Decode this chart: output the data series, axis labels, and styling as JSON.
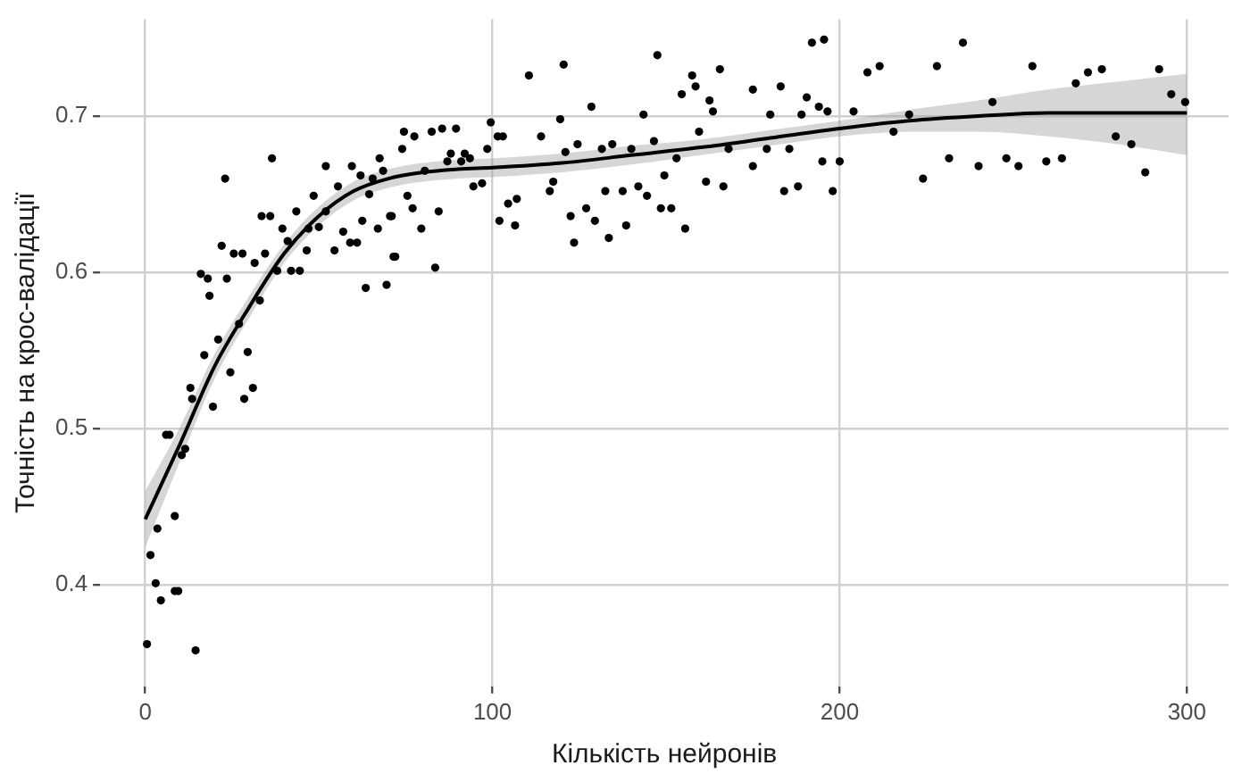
{
  "chart_data": {
    "type": "scatter",
    "xlabel": "Кількість нейронів",
    "ylabel": "Точність на крос-валідації",
    "xlim": [
      -13,
      312
    ],
    "ylim": [
      0.335,
      0.762
    ],
    "xticks": [
      0,
      100,
      200,
      300
    ],
    "yticks": [
      0.4,
      0.5,
      0.6,
      0.7
    ],
    "grid": true,
    "legend": false,
    "series": [
      {
        "marker": "circle",
        "color": "#000000",
        "x": [
          0.5,
          14.5,
          1.5,
          3.5,
          3,
          4.5,
          8.5,
          9.5,
          8.5,
          6,
          7,
          10.5,
          11.5,
          13,
          13.5,
          19.5,
          17,
          21,
          24.5,
          28.5,
          31,
          29.5,
          27,
          33,
          16,
          18,
          18.5,
          23.5,
          22,
          25.5,
          28,
          31.5,
          34.5,
          23,
          36.5,
          33.5,
          36,
          38,
          39.5,
          41,
          43.5,
          42,
          44.5,
          46.5,
          47,
          48.5,
          50,
          52,
          52,
          54.5,
          55.5,
          57,
          59,
          61,
          59.5,
          62,
          62.5,
          63.5,
          65.5,
          67.5,
          68.5,
          67,
          69.5,
          71,
          72,
          64.5,
          71.5,
          70.5,
          74,
          74.5,
          77.5,
          75.5,
          77,
          79.5,
          80.5,
          83.5,
          82.5,
          84.5,
          85.5,
          87,
          88,
          89.5,
          91,
          92,
          93.5,
          94.5,
          97,
          98.5,
          99.5,
          101.5,
          103,
          102,
          104.5,
          106.5,
          107,
          110.5,
          114,
          116.5,
          117.5,
          119.5,
          120.5,
          121,
          122.5,
          123.5,
          124.5,
          127,
          128.5,
          129.5,
          131.5,
          132.5,
          133.5,
          134.5,
          137.5,
          138.5,
          140,
          142,
          143.5,
          144.5,
          146.5,
          147.5,
          148.5,
          149.5,
          151.5,
          153,
          154.5,
          155.5,
          157.5,
          158.5,
          159.5,
          161.5,
          162.5,
          163.5,
          165.5,
          166.5,
          168,
          175,
          175,
          179,
          180,
          183,
          184,
          185.5,
          188,
          189,
          190.5,
          192,
          195.5,
          194,
          196.5,
          195,
          198,
          200,
          204,
          208,
          211.5,
          215.5,
          220,
          224,
          228,
          231.5,
          235.5,
          240,
          244,
          248,
          251.5,
          255.5,
          259.5,
          264,
          268,
          271.5,
          275.5,
          279.5,
          284,
          288,
          292,
          295.5,
          299.5
        ],
        "values": [
          0.362,
          0.358,
          0.419,
          0.436,
          0.401,
          0.39,
          0.396,
          0.396,
          0.444,
          0.496,
          0.496,
          0.483,
          0.487,
          0.526,
          0.519,
          0.514,
          0.547,
          0.557,
          0.536,
          0.519,
          0.526,
          0.549,
          0.567,
          0.582,
          0.599,
          0.596,
          0.585,
          0.596,
          0.617,
          0.612,
          0.612,
          0.606,
          0.612,
          0.66,
          0.673,
          0.636,
          0.636,
          0.601,
          0.628,
          0.62,
          0.639,
          0.601,
          0.601,
          0.614,
          0.628,
          0.649,
          0.629,
          0.668,
          0.639,
          0.614,
          0.655,
          0.626,
          0.619,
          0.619,
          0.668,
          0.662,
          0.633,
          0.59,
          0.66,
          0.673,
          0.665,
          0.628,
          0.592,
          0.636,
          0.61,
          0.65,
          0.61,
          0.636,
          0.679,
          0.69,
          0.687,
          0.649,
          0.641,
          0.628,
          0.665,
          0.603,
          0.69,
          0.639,
          0.692,
          0.671,
          0.676,
          0.692,
          0.671,
          0.676,
          0.673,
          0.655,
          0.657,
          0.679,
          0.696,
          0.687,
          0.687,
          0.633,
          0.644,
          0.63,
          0.647,
          0.726,
          0.687,
          0.652,
          0.658,
          0.698,
          0.733,
          0.677,
          0.636,
          0.619,
          0.682,
          0.641,
          0.706,
          0.633,
          0.679,
          0.652,
          0.622,
          0.682,
          0.652,
          0.63,
          0.679,
          0.655,
          0.701,
          0.649,
          0.684,
          0.739,
          0.641,
          0.662,
          0.641,
          0.673,
          0.714,
          0.628,
          0.726,
          0.719,
          0.69,
          0.658,
          0.71,
          0.703,
          0.73,
          0.655,
          0.679,
          0.717,
          0.668,
          0.679,
          0.701,
          0.719,
          0.652,
          0.679,
          0.655,
          0.701,
          0.712,
          0.747,
          0.749,
          0.706,
          0.703,
          0.671,
          0.652,
          0.671,
          0.703,
          0.728,
          0.732,
          0.69,
          0.701,
          0.66,
          0.732,
          0.673,
          0.747,
          0.668,
          0.709,
          0.673,
          0.668,
          0.732,
          0.671,
          0.673,
          0.721,
          0.728,
          0.73,
          0.687,
          0.682,
          0.664,
          0.73,
          0.714,
          0.709
        ]
      },
      {
        "type": "line",
        "color": "#000000",
        "x": [
          0,
          10,
          20,
          30,
          40,
          50,
          60,
          70,
          80,
          90,
          100,
          120,
          140,
          160,
          180,
          200,
          220,
          240,
          260,
          280,
          300
        ],
        "values": [
          0.442,
          0.49,
          0.54,
          0.578,
          0.612,
          0.636,
          0.652,
          0.66,
          0.664,
          0.666,
          0.667,
          0.67,
          0.675,
          0.68,
          0.686,
          0.692,
          0.697,
          0.7,
          0.702,
          0.702,
          0.702
        ],
        "lower": [
          0.424,
          0.479,
          0.532,
          0.571,
          0.606,
          0.63,
          0.646,
          0.654,
          0.658,
          0.66,
          0.661,
          0.664,
          0.669,
          0.675,
          0.681,
          0.687,
          0.69,
          0.69,
          0.687,
          0.682,
          0.675
        ],
        "upper": [
          0.46,
          0.501,
          0.548,
          0.585,
          0.618,
          0.642,
          0.658,
          0.666,
          0.67,
          0.672,
          0.673,
          0.676,
          0.681,
          0.685,
          0.691,
          0.697,
          0.704,
          0.71,
          0.717,
          0.722,
          0.727
        ]
      }
    ]
  }
}
